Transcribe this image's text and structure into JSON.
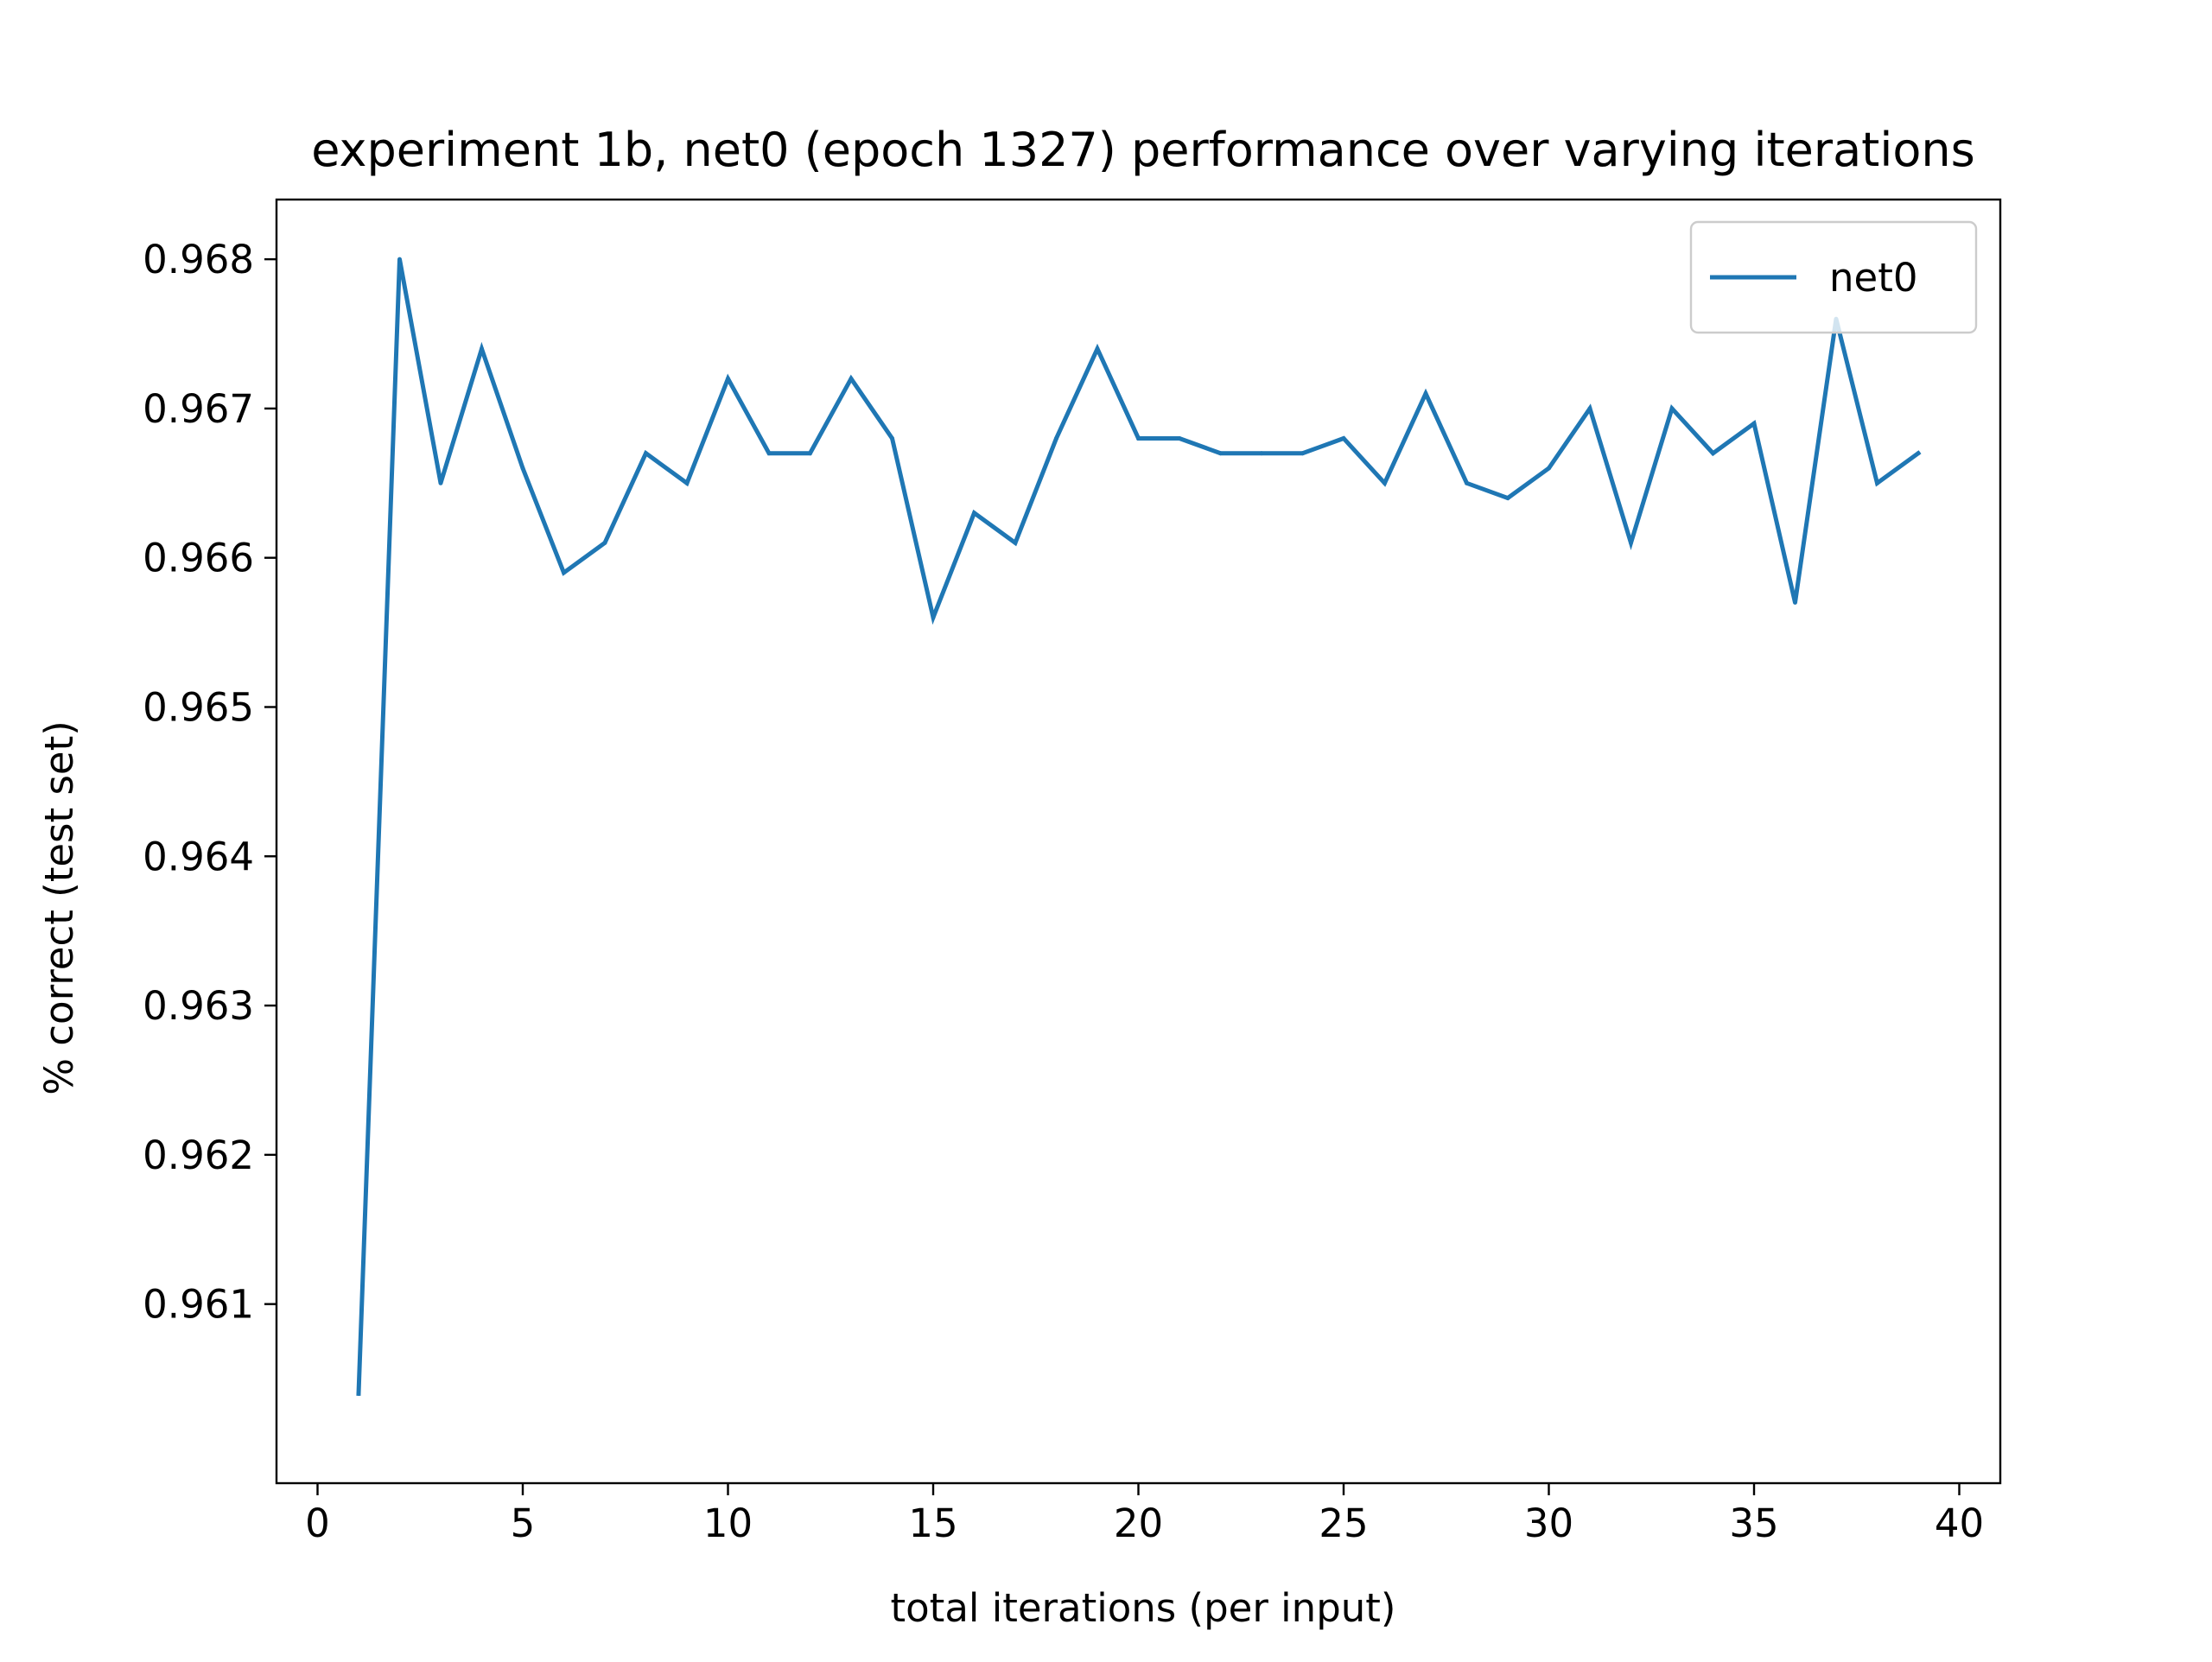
{
  "chart_data": {
    "type": "line",
    "title": "experiment 1b, net0 (epoch 1327) performance over varying iterations",
    "xlabel": "total iterations (per input)",
    "ylabel": "% correct (test set)",
    "xlim": [
      -1,
      41
    ],
    "ylim": [
      0.9598,
      0.9684
    ],
    "xticks": [
      0,
      5,
      10,
      15,
      20,
      25,
      30,
      35,
      40
    ],
    "xtick_labels": [
      "0",
      "5",
      "10",
      "15",
      "20",
      "25",
      "30",
      "35",
      "40"
    ],
    "yticks": [
      0.961,
      0.962,
      0.963,
      0.964,
      0.965,
      0.966,
      0.967,
      0.968
    ],
    "ytick_labels": [
      "0.961",
      "0.962",
      "0.963",
      "0.964",
      "0.965",
      "0.966",
      "0.967",
      "0.968"
    ],
    "grid": false,
    "legend_position": "top-right",
    "series": [
      {
        "name": "net0",
        "color": "#1f77b4",
        "x": [
          1,
          2,
          3,
          4,
          5,
          6,
          7,
          8,
          9,
          10,
          11,
          12,
          13,
          14,
          15,
          16,
          17,
          18,
          19,
          20,
          21,
          22,
          23,
          24,
          25,
          26,
          27,
          28,
          29,
          30,
          31,
          32,
          33,
          34,
          35,
          36,
          37,
          38,
          39
        ],
        "values": [
          0.9604,
          0.968,
          0.9665,
          0.9674,
          0.9666,
          0.9659,
          0.9661,
          0.9667,
          0.9665,
          0.9672,
          0.9667,
          0.9667,
          0.9672,
          0.9668,
          0.9656,
          0.9663,
          0.9661,
          0.9668,
          0.9674,
          0.9668,
          0.9668,
          0.9667,
          0.9667,
          0.9667,
          0.9668,
          0.9665,
          0.9671,
          0.9665,
          0.9664,
          0.9666,
          0.967,
          0.9661,
          0.967,
          0.9667,
          0.9669,
          0.9657,
          0.9676,
          0.9665,
          0.9667
        ]
      }
    ]
  }
}
